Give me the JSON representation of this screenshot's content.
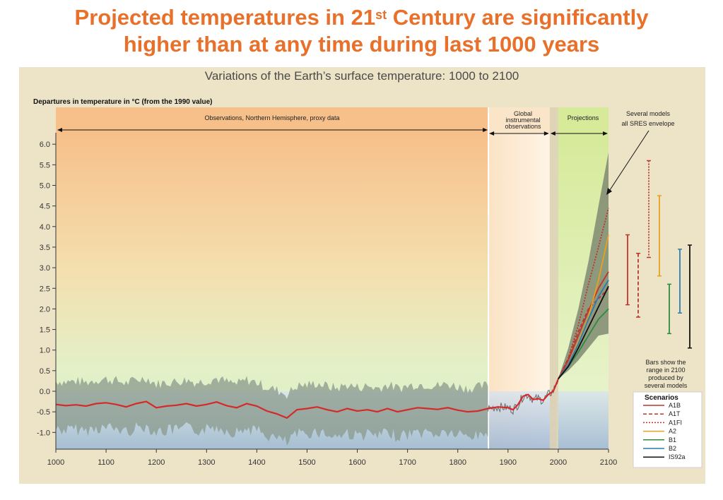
{
  "slide": {
    "title_part1": "Projected temperatures in 21",
    "title_sup": "st",
    "title_part2": " Century are significantly",
    "title_line2": "higher than at any time during last 1000 years"
  },
  "chart_data": {
    "type": "line",
    "title": "Variations of the Earth’s surface temperature: 1000 to 2100",
    "ylabel": "Departures in temperature in °C (from the 1990 value)",
    "xlim": [
      1000,
      2100
    ],
    "ylim": [
      -1.25,
      6.3
    ],
    "x_ticks": [
      "1000",
      "1100",
      "1200",
      "1300",
      "1400",
      "1500",
      "1600",
      "1700",
      "1800",
      "1900",
      "2000",
      "2100"
    ],
    "y_ticks": [
      "6.0",
      "5.5",
      "5.0",
      "4.5",
      "4.0",
      "3.5",
      "3.0",
      "2.5",
      "2.0",
      "1.5",
      "1.0",
      "0.5",
      "0.0",
      "-0.5",
      "-1.0"
    ],
    "periods": {
      "proxy": "Observations, Northern Hemisphere, proxy data",
      "instrumental": [
        "Global",
        "instrumental",
        "observations"
      ],
      "projections": "Projections"
    },
    "annotations": {
      "envelope": [
        "Several models",
        "all SRES envelope"
      ],
      "bars_note": [
        "Bars show the",
        "range in 2100",
        "produced by",
        "several models"
      ]
    },
    "colors": {
      "A1B": "#c0342c",
      "A1T": "#c0342c",
      "A1FI": "#c0342c",
      "A2": "#e8a020",
      "B1": "#2e8b3e",
      "B2": "#2a7db0",
      "IS92a": "#111111"
    },
    "observed": {
      "x": [
        1000,
        1020,
        1040,
        1060,
        1080,
        1100,
        1120,
        1140,
        1160,
        1180,
        1200,
        1220,
        1240,
        1260,
        1280,
        1300,
        1320,
        1340,
        1360,
        1380,
        1400,
        1420,
        1440,
        1460,
        1480,
        1500,
        1520,
        1540,
        1560,
        1580,
        1600,
        1620,
        1640,
        1660,
        1680,
        1700,
        1720,
        1740,
        1760,
        1780,
        1800,
        1820,
        1840,
        1860,
        1880,
        1900,
        1910,
        1920,
        1930,
        1940,
        1950,
        1960,
        1970,
        1980,
        1990,
        2000
      ],
      "y": [
        -0.32,
        -0.35,
        -0.33,
        -0.36,
        -0.3,
        -0.28,
        -0.32,
        -0.38,
        -0.3,
        -0.25,
        -0.4,
        -0.36,
        -0.34,
        -0.3,
        -0.36,
        -0.32,
        -0.26,
        -0.35,
        -0.4,
        -0.3,
        -0.36,
        -0.48,
        -0.55,
        -0.65,
        -0.45,
        -0.42,
        -0.38,
        -0.45,
        -0.5,
        -0.42,
        -0.48,
        -0.45,
        -0.5,
        -0.42,
        -0.5,
        -0.45,
        -0.4,
        -0.42,
        -0.44,
        -0.4,
        -0.46,
        -0.5,
        -0.48,
        -0.42,
        -0.38,
        -0.4,
        -0.45,
        -0.32,
        -0.12,
        -0.08,
        -0.2,
        -0.18,
        -0.22,
        -0.08,
        0.0,
        0.3
      ]
    },
    "envelope": {
      "x": [
        2000,
        2020,
        2040,
        2060,
        2080,
        2100
      ],
      "lower": [
        0.3,
        0.5,
        0.75,
        1.05,
        1.35,
        1.4
      ],
      "upper": [
        0.3,
        1.05,
        2.0,
        3.15,
        4.5,
        5.8
      ]
    },
    "series": [
      {
        "name": "A1B",
        "x": [
          2000,
          2020,
          2040,
          2060,
          2080,
          2100
        ],
        "y": [
          0.3,
          0.75,
          1.35,
          1.95,
          2.5,
          2.9
        ]
      },
      {
        "name": "A1T",
        "x": [
          2000,
          2020,
          2040,
          2060,
          2080,
          2100
        ],
        "y": [
          0.3,
          0.8,
          1.45,
          2.0,
          2.25,
          2.5
        ]
      },
      {
        "name": "A1FI",
        "x": [
          2000,
          2020,
          2040,
          2060,
          2080,
          2100
        ],
        "y": [
          0.3,
          0.8,
          1.6,
          2.6,
          3.5,
          4.45
        ]
      },
      {
        "name": "A2",
        "x": [
          2000,
          2020,
          2040,
          2060,
          2080,
          2100
        ],
        "y": [
          0.3,
          0.65,
          1.2,
          1.8,
          2.7,
          3.8
        ]
      },
      {
        "name": "B1",
        "x": [
          2000,
          2020,
          2040,
          2060,
          2080,
          2100
        ],
        "y": [
          0.3,
          0.6,
          0.95,
          1.35,
          1.75,
          2.0
        ]
      },
      {
        "name": "B2",
        "x": [
          2000,
          2020,
          2040,
          2060,
          2080,
          2100
        ],
        "y": [
          0.3,
          0.65,
          1.15,
          1.75,
          2.3,
          2.7
        ]
      },
      {
        "name": "IS92a",
        "x": [
          2000,
          2020,
          2040,
          2060,
          2080,
          2100
        ],
        "y": [
          0.3,
          0.6,
          1.05,
          1.55,
          2.05,
          2.55
        ]
      }
    ],
    "range_bars": [
      {
        "name": "A1B",
        "low": 2.1,
        "high": 3.8
      },
      {
        "name": "A1T",
        "low": 1.8,
        "high": 3.35
      },
      {
        "name": "A1FI",
        "low": 3.25,
        "high": 5.6
      },
      {
        "name": "A2",
        "low": 2.8,
        "high": 4.75
      },
      {
        "name": "B1",
        "low": 1.4,
        "high": 2.6
      },
      {
        "name": "B2",
        "low": 1.9,
        "high": 3.45
      },
      {
        "name": "IS92a",
        "low": 1.05,
        "high": 3.55
      }
    ],
    "legend": {
      "title": "Scenarios",
      "position": "bottom-right",
      "items": [
        "A1B",
        "A1T",
        "A1FI",
        "A2",
        "B1",
        "B2",
        "IS92a"
      ]
    }
  }
}
